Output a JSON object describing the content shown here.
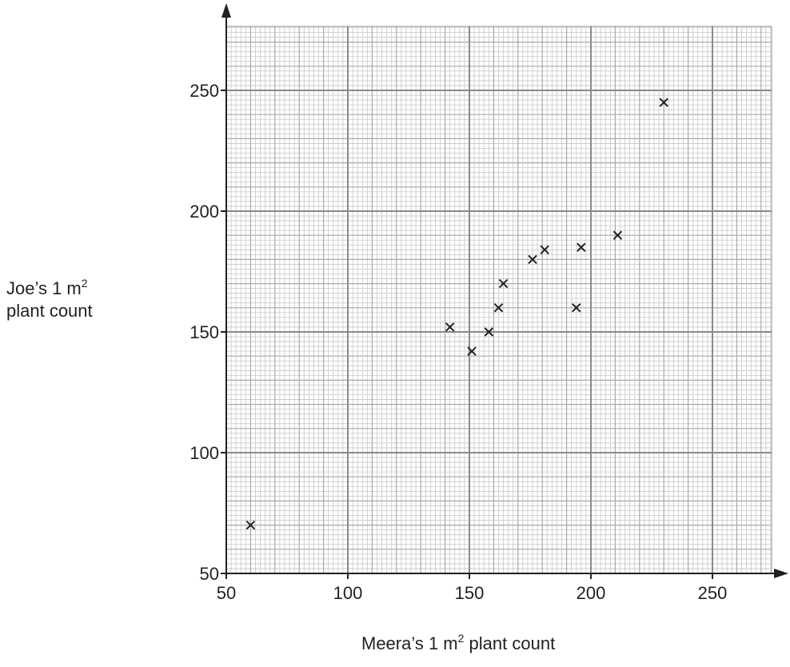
{
  "chart_data": {
    "type": "scatter",
    "xlabel": {
      "pre": "Meera’s 1 m",
      "sup": "2",
      "post": " plant count"
    },
    "ylabel": {
      "line1_pre": "Joe’s 1 m",
      "line1_sup": "2",
      "line2": "plant count"
    },
    "xlim": [
      50,
      270
    ],
    "ylim": [
      50,
      280
    ],
    "xticks": [
      50,
      100,
      150,
      200,
      250
    ],
    "yticks": [
      50,
      100,
      150,
      200,
      250
    ],
    "grid": true,
    "marker": "x",
    "points": [
      {
        "x": 60,
        "y": 70
      },
      {
        "x": 142,
        "y": 152
      },
      {
        "x": 151,
        "y": 142
      },
      {
        "x": 158,
        "y": 150
      },
      {
        "x": 162,
        "y": 160
      },
      {
        "x": 164,
        "y": 170
      },
      {
        "x": 176,
        "y": 180
      },
      {
        "x": 181,
        "y": 184
      },
      {
        "x": 194,
        "y": 160
      },
      {
        "x": 196,
        "y": 185
      },
      {
        "x": 211,
        "y": 190
      },
      {
        "x": 230,
        "y": 245
      }
    ]
  }
}
